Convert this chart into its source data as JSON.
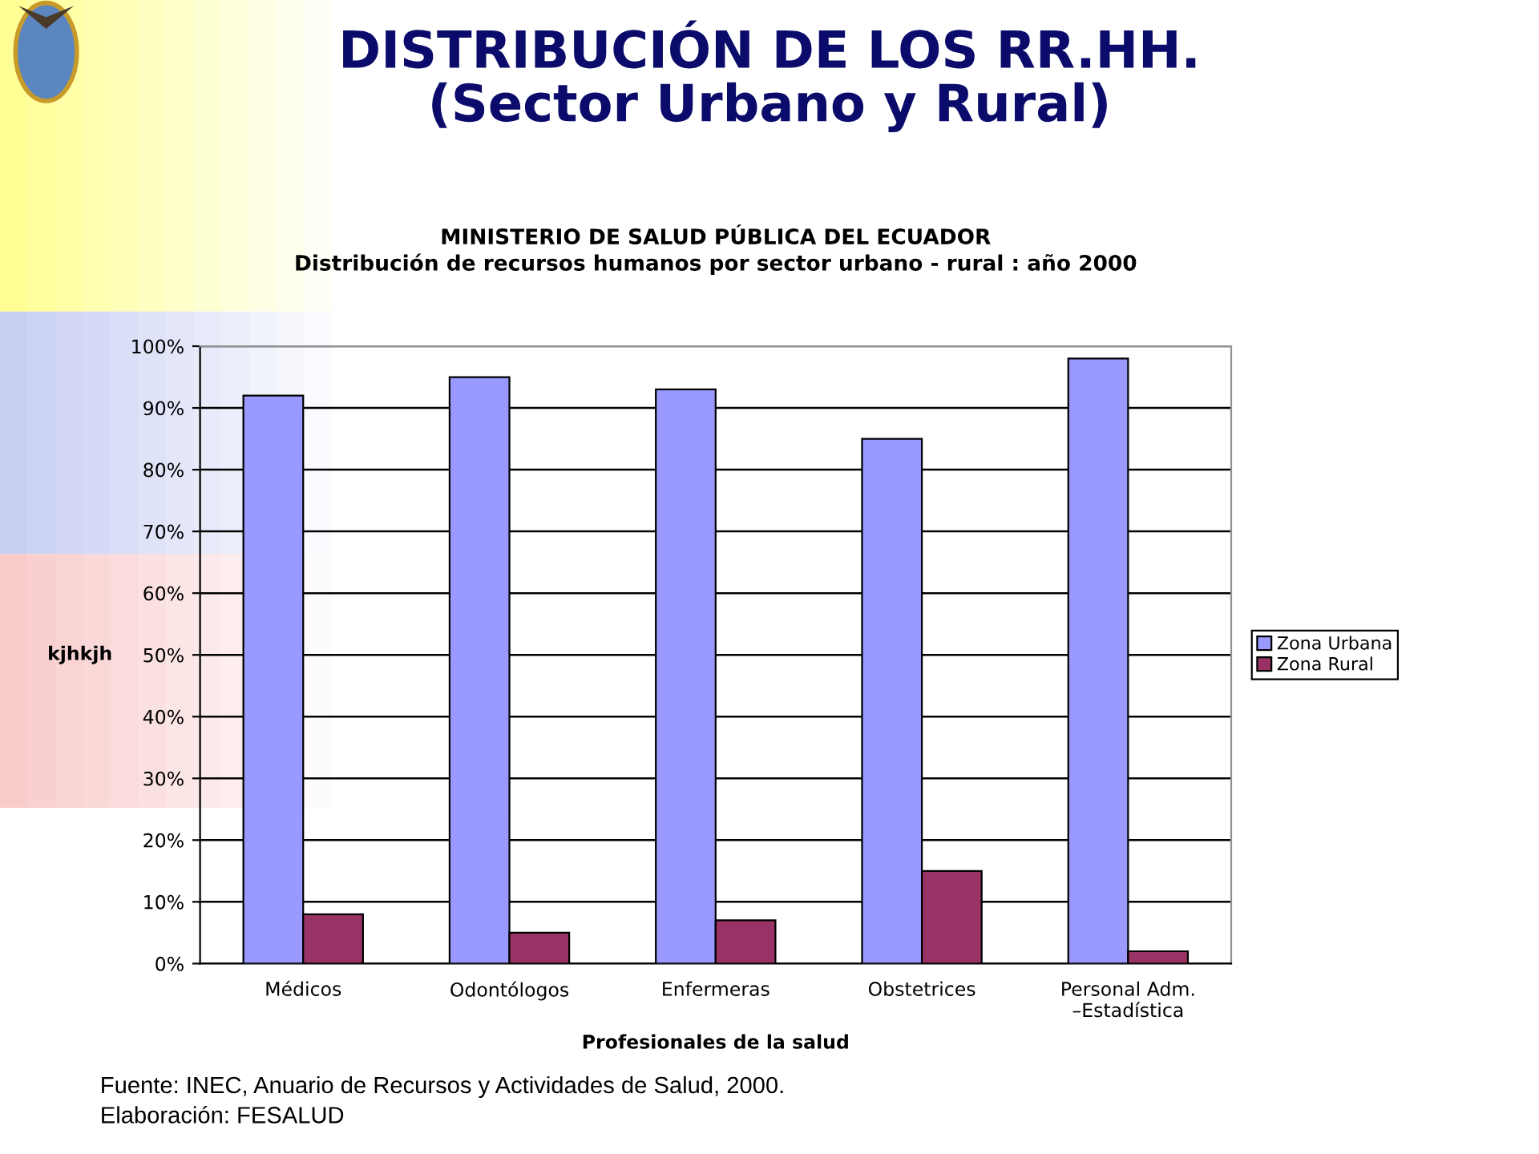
{
  "chart_data": {
    "type": "bar",
    "title": "DISTRIBUCIÓN DE LOS RR.HH.\n(Sector Urbano y Rural)",
    "subtitle": "MINISTERIO DE SALUD PÚBLICA DEL ECUADOR\nDistribución de recursos humanos por sector urbano - rural : año 2000",
    "xlabel": "Profesionales de la salud",
    "ylabel": "kjhkjh",
    "categories": [
      "Médicos",
      "Odontólogos",
      "Enfermeras",
      "Obstetrices",
      "Personal Adm.\n–Estadística"
    ],
    "series": [
      {
        "name": "Zona Urbana",
        "color": "#9999ff",
        "values": [
          92,
          95,
          93,
          85,
          98
        ]
      },
      {
        "name": "Zona Rural",
        "color": "#993366",
        "values": [
          8,
          5,
          7,
          15,
          2
        ]
      }
    ],
    "ylim": [
      0,
      100
    ],
    "yticks": [
      {
        "value": 0,
        "label": "0%"
      },
      {
        "value": 10,
        "label": "10%"
      },
      {
        "value": 20,
        "label": "20%"
      },
      {
        "value": 30,
        "label": "30%"
      },
      {
        "value": 40,
        "label": "40%"
      },
      {
        "value": 50,
        "label": "50%"
      },
      {
        "value": 60,
        "label": "60%"
      },
      {
        "value": 70,
        "label": "70%"
      },
      {
        "value": 80,
        "label": "80%"
      },
      {
        "value": 90,
        "label": "90%"
      },
      {
        "value": 100,
        "label": "100%"
      }
    ],
    "grid": "y",
    "legend": "right",
    "annotations": [
      "Fuente: INEC, Anuario de Recursos y Actividades de Salud, 2000.",
      "Elaboración: FESALUD"
    ]
  }
}
